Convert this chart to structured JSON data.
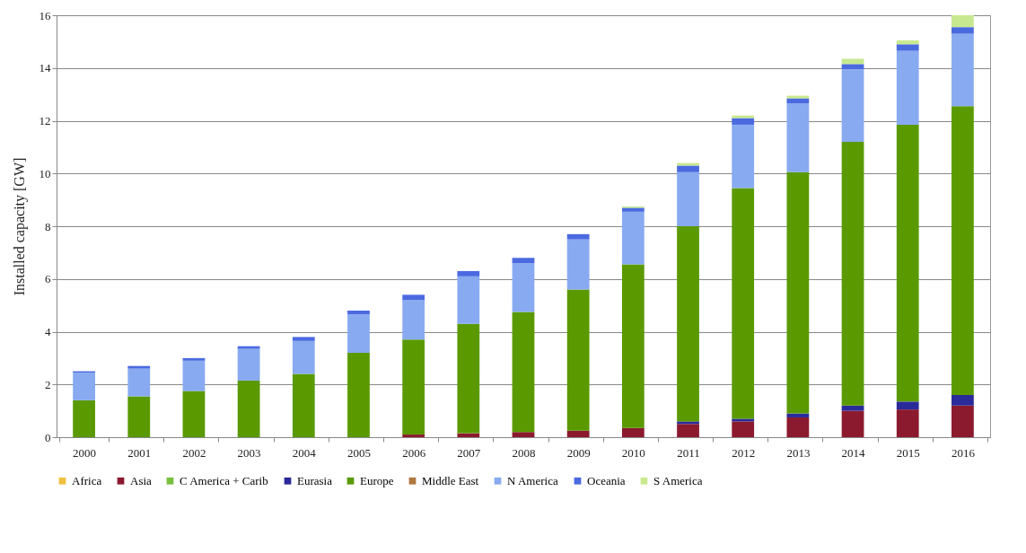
{
  "chart_data": {
    "type": "bar",
    "stacked": true,
    "ylabel": "Installed capacity [GW]",
    "categories": [
      "2000",
      "2001",
      "2002",
      "2003",
      "2004",
      "2005",
      "2006",
      "2007",
      "2008",
      "2009",
      "2010",
      "2011",
      "2012",
      "2013",
      "2014",
      "2015",
      "2016"
    ],
    "series": [
      {
        "name": "Africa",
        "color": "#f0c040",
        "values": [
          0,
          0,
          0,
          0,
          0,
          0,
          0,
          0,
          0,
          0,
          0,
          0,
          0,
          0,
          0,
          0,
          0
        ]
      },
      {
        "name": "Asia",
        "color": "#8b1a2e",
        "values": [
          0,
          0,
          0,
          0,
          0,
          0,
          0.1,
          0.15,
          0.2,
          0.25,
          0.35,
          0.5,
          0.6,
          0.75,
          1.0,
          1.05,
          1.2
        ]
      },
      {
        "name": "C America + Carib",
        "color": "#78c03c",
        "values": [
          0,
          0,
          0,
          0,
          0,
          0,
          0,
          0,
          0,
          0,
          0,
          0,
          0,
          0,
          0,
          0,
          0
        ]
      },
      {
        "name": "Eurasia",
        "color": "#2a2a9a",
        "values": [
          0,
          0,
          0,
          0,
          0,
          0,
          0,
          0,
          0,
          0,
          0,
          0.1,
          0.1,
          0.15,
          0.2,
          0.3,
          0.4
        ]
      },
      {
        "name": "Europe",
        "color": "#5a9a00",
        "values": [
          1.4,
          1.55,
          1.75,
          2.15,
          2.4,
          3.2,
          3.6,
          4.15,
          4.55,
          5.35,
          6.2,
          7.4,
          8.75,
          9.15,
          10.0,
          10.5,
          10.95
        ]
      },
      {
        "name": "Middle East",
        "color": "#b07840",
        "values": [
          0,
          0,
          0,
          0,
          0,
          0,
          0,
          0,
          0,
          0,
          0,
          0,
          0,
          0,
          0,
          0,
          0
        ]
      },
      {
        "name": "N America",
        "color": "#88aaf0",
        "values": [
          1.05,
          1.05,
          1.15,
          1.2,
          1.25,
          1.45,
          1.5,
          1.8,
          1.85,
          1.9,
          2.0,
          2.05,
          2.4,
          2.6,
          2.75,
          2.8,
          2.75
        ]
      },
      {
        "name": "Oceania",
        "color": "#4a6ae0",
        "values": [
          0.05,
          0.1,
          0.1,
          0.1,
          0.15,
          0.15,
          0.2,
          0.2,
          0.2,
          0.2,
          0.15,
          0.25,
          0.25,
          0.2,
          0.2,
          0.25,
          0.25
        ]
      },
      {
        "name": "S America",
        "color": "#c8e890",
        "values": [
          0,
          0,
          0,
          0,
          0,
          0,
          0,
          0,
          0,
          0,
          0.05,
          0.1,
          0.1,
          0.1,
          0.2,
          0.15,
          0.45
        ]
      }
    ],
    "ylim": [
      0,
      16
    ],
    "yticks": [
      0,
      2,
      4,
      6,
      8,
      10,
      12,
      14,
      16
    ],
    "grid": "y",
    "legend": "bottom"
  }
}
